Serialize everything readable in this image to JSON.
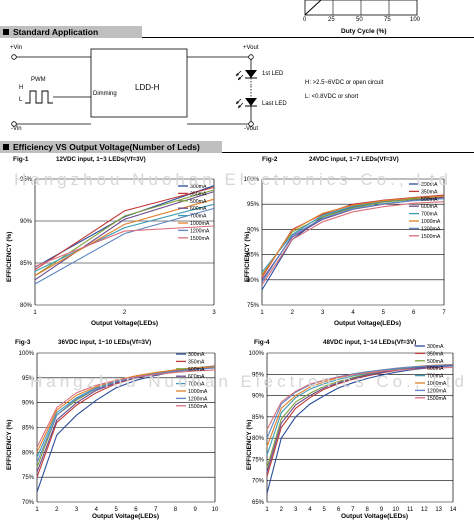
{
  "top_chart": {
    "ticks": [
      "0",
      "25",
      "50",
      "75",
      "100"
    ],
    "xlabel": "Duty Cycle (%)"
  },
  "section1": {
    "title": "Standard Application"
  },
  "diagram": {
    "vin_plus": "+Vin",
    "vin_minus": "-Vin",
    "vout_plus": "+Vout",
    "vout_minus": "-Vout",
    "pwm": "PWM",
    "h": "H",
    "l": "L",
    "dimming": "Dimming",
    "device": "LDD-H□",
    "led_first": "1st LED",
    "led_last": "Last LED",
    "note_h": "H: >2.5~6VDC or open circuit",
    "note_l": "L: <0.8VDC or short"
  },
  "section2": {
    "title": "Efficiency VS Output Voltage(Number of Leds)"
  },
  "watermark": "Hangzhou Nuohan Electronics Co., Ltd",
  "legend_labels": [
    "300mA",
    "350mA",
    "500mA",
    "600mA",
    "700mA",
    "1000mA",
    "1200mA",
    "1500mA"
  ],
  "series_colors": [
    "#2b4c9b",
    "#c23b3b",
    "#7f9f3c",
    "#6a4b8c",
    "#3f9bb5",
    "#e07f2a",
    "#5f86c4",
    "#d96f7a"
  ],
  "chart_data": [
    {
      "type": "line",
      "fig": "Fig-1",
      "title": "12VDC input, 1~3 LEDs(Vf=3V)",
      "xlabel": "Output Voltage(LEDs)",
      "ylabel": "EFFICIENCY (%)",
      "x": [
        1,
        2,
        3
      ],
      "xlim": [
        1,
        3
      ],
      "ylim": [
        80,
        95
      ],
      "yticks": [
        "80%",
        "85%",
        "90%",
        "95%"
      ],
      "legend": "top-right",
      "series": [
        {
          "name": "300mA",
          "values": [
            84.5,
            90.5,
            94.2
          ]
        },
        {
          "name": "350mA",
          "values": [
            84.2,
            91.2,
            94.0
          ]
        },
        {
          "name": "500mA",
          "values": [
            83.5,
            90.6,
            93.7
          ]
        },
        {
          "name": "600mA",
          "values": [
            83.0,
            90.2,
            93.5
          ]
        },
        {
          "name": "700mA",
          "values": [
            84.0,
            89.2,
            92.0
          ]
        },
        {
          "name": "1000mA",
          "values": [
            83.5,
            89.6,
            92.6
          ]
        },
        {
          "name": "1200mA",
          "values": [
            82.5,
            88.5,
            91.5
          ]
        },
        {
          "name": "1500mA",
          "values": [
            84.6,
            88.8,
            89.4
          ]
        }
      ]
    },
    {
      "type": "line",
      "fig": "Fig-2",
      "title": "24VDC input, 1~7 LEDs(Vf=3V)",
      "xlabel": "Output Voltage(LEDs)",
      "ylabel": "EFFICIENCY (%)",
      "x": [
        1,
        2,
        3,
        4,
        5,
        6,
        7
      ],
      "xlim": [
        1,
        7
      ],
      "ylim": [
        75,
        100
      ],
      "yticks": [
        "75%",
        "80%",
        "85%",
        "90%",
        "95%",
        "100%"
      ],
      "legend": "top-right",
      "series": [
        {
          "name": "300mA",
          "values": [
            78.0,
            88.0,
            92.5,
            94.5,
            95.5,
            96.0,
            96.5
          ]
        },
        {
          "name": "350mA",
          "values": [
            80.5,
            90.0,
            93.0,
            95.0,
            95.8,
            96.3,
            96.8
          ]
        },
        {
          "name": "500mA",
          "values": [
            81.0,
            89.5,
            92.5,
            94.3,
            95.4,
            96.0,
            96.5
          ]
        },
        {
          "name": "600mA",
          "values": [
            80.0,
            88.5,
            92.0,
            94.0,
            95.0,
            95.8,
            96.3
          ]
        },
        {
          "name": "700mA",
          "values": [
            81.5,
            89.0,
            92.8,
            94.6,
            95.6,
            96.2,
            96.6
          ]
        },
        {
          "name": "1000mA",
          "values": [
            80.8,
            89.8,
            93.2,
            94.8,
            95.7,
            96.2,
            96.6
          ]
        },
        {
          "name": "1200mA",
          "values": [
            79.5,
            88.8,
            92.2,
            94.1,
            95.1,
            95.7,
            96.1
          ]
        },
        {
          "name": "1500mA",
          "values": [
            79.0,
            88.0,
            91.5,
            93.5,
            94.5,
            95.2,
            95.5
          ]
        }
      ]
    },
    {
      "type": "line",
      "fig": "Fig-3",
      "title": "36VDC input, 1~10 LEDs(Vf=3V)",
      "xlabel": "Output Voltage(LEDs)",
      "ylabel": "EFFICIENCY (%)",
      "x": [
        1,
        2,
        3,
        4,
        5,
        6,
        7,
        8,
        9,
        10
      ],
      "xlim": [
        1,
        10
      ],
      "ylim": [
        70,
        100
      ],
      "yticks": [
        "70%",
        "75%",
        "80%",
        "85%",
        "90%",
        "95%",
        "100%"
      ],
      "legend": "top-right",
      "series": [
        {
          "name": "300mA",
          "values": [
            72.0,
            83.5,
            87.5,
            90.5,
            93.0,
            94.5,
            95.5,
            96.3,
            96.8,
            97.2
          ]
        },
        {
          "name": "350mA",
          "values": [
            75.0,
            86.0,
            89.5,
            92.0,
            93.8,
            95.0,
            95.8,
            96.5,
            97.0,
            97.4
          ]
        },
        {
          "name": "500mA",
          "values": [
            77.0,
            87.5,
            90.5,
            92.8,
            94.2,
            95.2,
            96.0,
            96.6,
            97.0,
            97.3
          ]
        },
        {
          "name": "600mA",
          "values": [
            76.0,
            86.5,
            90.0,
            92.5,
            94.0,
            95.0,
            95.8,
            96.4,
            96.9,
            97.2
          ]
        },
        {
          "name": "700mA",
          "values": [
            79.0,
            88.0,
            91.0,
            93.0,
            94.4,
            95.3,
            96.0,
            96.6,
            97.0,
            97.3
          ]
        },
        {
          "name": "1000mA",
          "values": [
            80.0,
            88.5,
            91.5,
            93.2,
            94.5,
            95.4,
            96.1,
            96.6,
            97.0,
            97.2
          ]
        },
        {
          "name": "1200mA",
          "values": [
            78.0,
            87.5,
            90.8,
            92.8,
            94.2,
            95.1,
            95.8,
            96.3,
            96.7,
            97.0
          ]
        },
        {
          "name": "1500mA",
          "values": [
            81.0,
            89.0,
            92.0,
            93.5,
            94.5,
            95.2,
            95.7,
            96.1,
            96.4,
            96.6
          ]
        }
      ]
    },
    {
      "type": "line",
      "fig": "Fig-4",
      "title": "48VDC input, 1~14 LEDs(Vf=3V)",
      "xlabel": "Output Voltage(LEDs)",
      "ylabel": "EFFICIENCY (%)",
      "x": [
        1,
        2,
        3,
        4,
        5,
        6,
        7,
        8,
        9,
        10,
        11,
        12,
        13,
        14
      ],
      "xlim": [
        1,
        14
      ],
      "ylim": [
        65,
        100
      ],
      "yticks": [
        "65%",
        "70%",
        "75%",
        "80%",
        "85%",
        "90%",
        "95%",
        "100%"
      ],
      "legend": "top-right",
      "series": [
        {
          "name": "300mA",
          "values": [
            67.0,
            80.0,
            85.0,
            88.0,
            90.0,
            91.8,
            93.0,
            94.0,
            94.8,
            95.5,
            96.0,
            96.4,
            96.8,
            97.0
          ]
        },
        {
          "name": "350mA",
          "values": [
            71.0,
            82.5,
            87.0,
            89.5,
            91.5,
            92.8,
            93.8,
            94.6,
            95.3,
            95.9,
            96.3,
            96.7,
            97.0,
            97.2
          ]
        },
        {
          "name": "500mA",
          "values": [
            73.0,
            84.5,
            88.5,
            90.5,
            92.2,
            93.3,
            94.2,
            95.0,
            95.6,
            96.1,
            96.5,
            96.8,
            97.1,
            97.3
          ]
        },
        {
          "name": "600mA",
          "values": [
            72.0,
            83.5,
            87.8,
            90.0,
            91.8,
            93.0,
            94.0,
            94.8,
            95.4,
            96.0,
            96.4,
            96.7,
            97.0,
            97.2
          ]
        },
        {
          "name": "700mA",
          "values": [
            76.0,
            86.0,
            89.5,
            91.5,
            92.8,
            93.8,
            94.6,
            95.2,
            95.8,
            96.2,
            96.6,
            96.9,
            97.1,
            97.3
          ]
        },
        {
          "name": "1000mA",
          "values": [
            78.0,
            87.0,
            90.0,
            92.0,
            93.2,
            94.2,
            94.9,
            95.5,
            96.0,
            96.4,
            96.7,
            97.0,
            97.2,
            97.3
          ]
        },
        {
          "name": "1200mA",
          "values": [
            80.0,
            88.0,
            90.8,
            92.5,
            93.6,
            94.4,
            95.1,
            95.6,
            96.0,
            96.4,
            96.7,
            96.9,
            97.1,
            97.2
          ]
        },
        {
          "name": "1500mA",
          "values": [
            82.0,
            88.5,
            91.0,
            92.7,
            93.6,
            94.3,
            94.9,
            95.3,
            95.7,
            96.0,
            96.2,
            96.4,
            96.5,
            96.6
          ]
        }
      ]
    }
  ]
}
